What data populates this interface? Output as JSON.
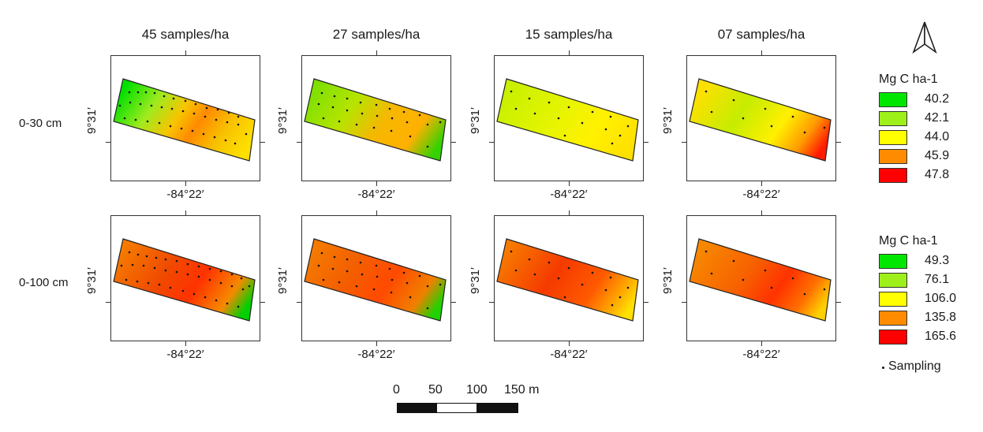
{
  "columns": [
    "45 samples/ha",
    "27 samples/ha",
    "15 samples/ha",
    "07 samples/ha"
  ],
  "rows": [
    "0-30 cm",
    "0-100 cm"
  ],
  "axis": {
    "lon_label": "-84°22′",
    "lat_label": "9°31′"
  },
  "legend_top": {
    "title": "Mg C ha-1",
    "items": [
      {
        "value": "40.2",
        "color": "#00e600"
      },
      {
        "value": "42.1",
        "color": "#9ef01a"
      },
      {
        "value": "44.0",
        "color": "#ffff00"
      },
      {
        "value": "45.9",
        "color": "#ff8c00"
      },
      {
        "value": "47.8",
        "color": "#ff0000"
      }
    ]
  },
  "legend_bottom": {
    "title": "Mg C ha-1",
    "items": [
      {
        "value": "49.3",
        "color": "#00e600"
      },
      {
        "value": "76.1",
        "color": "#9ef01a"
      },
      {
        "value": "106.0",
        "color": "#ffff00"
      },
      {
        "value": "135.8",
        "color": "#ff8c00"
      },
      {
        "value": "165.6",
        "color": "#ff0000"
      }
    ]
  },
  "sampling_label": "Sampling",
  "scale": {
    "labels": [
      "0",
      "50",
      "100",
      "150 m"
    ]
  }
}
